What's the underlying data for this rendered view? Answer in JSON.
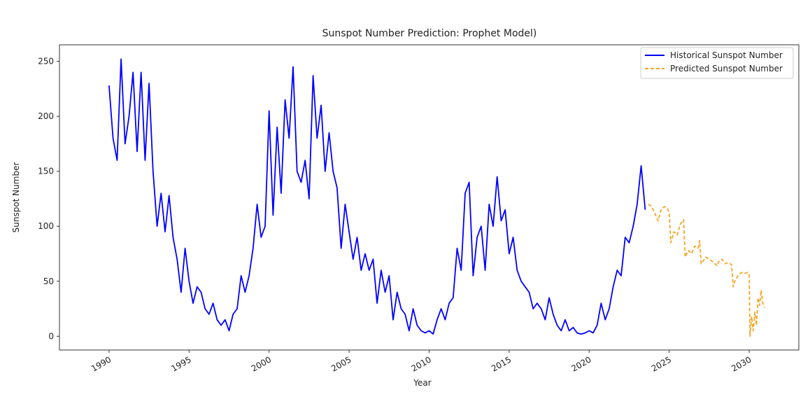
{
  "chart_data": {
    "type": "line",
    "title": "Sunspot Number Prediction: Prophet Model)",
    "xlabel": "Year",
    "ylabel": "Sunspot Number",
    "xlim": [
      1986.9,
      2033.1
    ],
    "ylim": [
      -12.5,
      265
    ],
    "xticks": [
      1990,
      1995,
      2000,
      2005,
      2010,
      2015,
      2020,
      2025,
      2030
    ],
    "yticks": [
      0,
      50,
      100,
      150,
      200,
      250
    ],
    "grid": false,
    "legend_position": "top-right",
    "series": [
      {
        "name": "Historical Sunspot Number",
        "color": "#0000ff",
        "style": "solid",
        "x_start": 1990.0,
        "x_step": 0.25,
        "values": [
          228,
          180,
          160,
          252,
          175,
          200,
          240,
          168,
          240,
          160,
          230,
          150,
          100,
          130,
          95,
          128,
          90,
          70,
          40,
          80,
          50,
          30,
          45,
          40,
          25,
          20,
          30,
          15,
          10,
          15,
          5,
          20,
          25,
          55,
          40,
          55,
          80,
          120,
          90,
          100,
          205,
          110,
          190,
          130,
          215,
          180,
          245,
          150,
          140,
          160,
          125,
          237,
          180,
          210,
          150,
          185,
          150,
          135,
          80,
          120,
          95,
          70,
          90,
          60,
          75,
          60,
          70,
          30,
          60,
          40,
          55,
          15,
          40,
          25,
          20,
          5,
          25,
          10,
          5,
          3,
          5,
          2,
          15,
          25,
          15,
          30,
          35,
          80,
          60,
          130,
          140,
          55,
          90,
          100,
          60,
          120,
          100,
          145,
          105,
          115,
          75,
          90,
          60,
          50,
          45,
          40,
          25,
          30,
          25,
          15,
          35,
          20,
          10,
          5,
          15,
          5,
          8,
          3,
          2,
          3,
          5,
          3,
          10,
          30,
          15,
          25,
          45,
          60,
          55,
          90,
          85,
          100,
          120,
          155,
          115
        ]
      },
      {
        "name": "Predicted Sunspot Number",
        "color": "#f5a623",
        "style": "dashed",
        "x": [
          2023.7,
          2023.9,
          2024.1,
          2024.3,
          2024.5,
          2024.7,
          2024.9,
          2025.0,
          2025.1,
          2025.3,
          2025.5,
          2025.7,
          2025.9,
          2026.0,
          2026.2,
          2026.4,
          2026.6,
          2026.8,
          2026.9,
          2027.0,
          2027.3,
          2027.5,
          2027.7,
          2028.0,
          2028.1,
          2028.3,
          2028.5,
          2028.7,
          2028.9,
          2029.0,
          2029.1,
          2029.3,
          2029.5,
          2029.7,
          2029.9,
          2030.0,
          2030.05,
          2030.15,
          2030.25,
          2030.35,
          2030.45,
          2030.55,
          2030.65,
          2030.75,
          2030.85,
          2030.95
        ],
        "values": [
          120,
          118,
          112,
          105,
          115,
          118,
          116,
          112,
          85,
          95,
          92,
          102,
          106,
          72,
          78,
          75,
          82,
          80,
          87,
          66,
          72,
          70,
          68,
          64,
          68,
          70,
          66,
          67,
          65,
          45,
          50,
          55,
          58,
          57,
          58,
          56,
          0,
          18,
          5,
          22,
          10,
          35,
          28,
          42,
          30,
          26
        ]
      }
    ]
  }
}
